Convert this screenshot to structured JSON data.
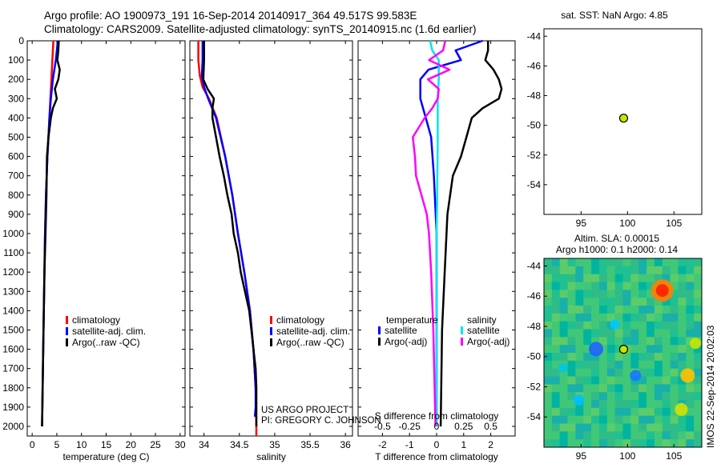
{
  "header": {
    "line1": "Argo profile: AO 1900973_191 16-Sep-2014 20140917_364 49.517S 99.583E",
    "line2": "Climatology: CARS2009. Satellite-adjusted climatology: synTS_20140915.nc (1.6d earlier)"
  },
  "credits": {
    "project": "US ARGO PROJECT",
    "pi": "PI: GREGORY C. JOHNSON",
    "imos": "IMOS 22-Sep-2014 20:02:03"
  },
  "colors": {
    "climatology": "#ff0000",
    "satellite": "#0000ff",
    "argo": "#000000",
    "sat_t": "#0000ff",
    "sat_s": "#00e5ee",
    "argo_s": "#ff00ff",
    "marker": "#c8e600"
  },
  "chart_data": [
    {
      "type": "line",
      "id": "temperature",
      "xlabel": "temperature (deg C)",
      "ylim": [
        2050,
        0
      ],
      "xlim": [
        -1,
        31
      ],
      "xticks": [
        "0",
        "5",
        "10",
        "15",
        "20",
        "25",
        "30"
      ],
      "yticks": [
        "0",
        "100",
        "200",
        "300",
        "400",
        "500",
        "600",
        "700",
        "800",
        "900",
        "1000",
        "1100",
        "1200",
        "1300",
        "1400",
        "1500",
        "1600",
        "1700",
        "1800",
        "1900",
        "2000"
      ],
      "legend": [
        "climatology",
        "satellite-adj. clim.",
        "Argo(..raw -QC)"
      ],
      "series": [
        {
          "name": "climatology",
          "depth": [
            0,
            100,
            200,
            300,
            400,
            600,
            800,
            1000,
            1500,
            2000
          ],
          "values": [
            4.3,
            4.1,
            3.9,
            3.7,
            3.5,
            3.1,
            2.8,
            2.6,
            2.3,
            2.0
          ]
        },
        {
          "name": "satellite-adj. clim.",
          "depth": [
            0,
            100,
            200,
            300,
            400,
            600,
            800,
            1000,
            1500,
            2000
          ],
          "values": [
            5.2,
            4.8,
            4.2,
            3.8,
            3.5,
            3.1,
            2.8,
            2.6,
            2.3,
            2.0
          ]
        },
        {
          "name": "Argo(..raw -QC)",
          "depth": [
            0,
            50,
            100,
            150,
            200,
            250,
            300,
            350,
            400,
            500,
            600,
            800,
            1000,
            1200,
            1500,
            2000
          ],
          "values": [
            5.4,
            5.3,
            5.1,
            5.6,
            5.3,
            4.6,
            5.0,
            4.2,
            3.8,
            3.3,
            3.0,
            2.9,
            2.7,
            2.5,
            2.3,
            2.0
          ]
        }
      ]
    },
    {
      "type": "line",
      "id": "salinity",
      "xlabel": "salinity",
      "ylim": [
        2050,
        0
      ],
      "xlim": [
        33.8,
        36.1
      ],
      "xticks": [
        "34",
        "34.5",
        "35",
        "35.5",
        "36"
      ],
      "legend": [
        "climatology",
        "satellite-adj. clim.",
        "Argo(..raw -QC)"
      ],
      "series": [
        {
          "name": "climatology",
          "depth": [
            0,
            100,
            180,
            240,
            300,
            400,
            600,
            800,
            1000,
            1200,
            1400,
            1600,
            1800,
            2000,
            2050
          ],
          "values": [
            33.92,
            33.92,
            33.94,
            33.98,
            34.07,
            34.18,
            34.3,
            34.4,
            34.48,
            34.57,
            34.65,
            34.7,
            34.73,
            34.74,
            34.74
          ]
        },
        {
          "name": "satellite-adj. clim.",
          "depth": [
            0,
            100,
            180,
            240,
            300,
            400,
            600,
            800,
            1000,
            1200,
            1400,
            1600,
            1800,
            1900,
            1950
          ],
          "values": [
            33.98,
            33.98,
            33.97,
            34.0,
            34.06,
            34.17,
            34.3,
            34.4,
            34.48,
            34.57,
            34.65,
            34.7,
            34.73,
            34.73,
            34.72
          ]
        },
        {
          "name": "Argo(..raw -QC)",
          "depth": [
            0,
            100,
            200,
            250,
            300,
            350,
            400,
            500,
            600,
            700,
            800,
            900,
            1000,
            1100,
            1200,
            1300,
            1400,
            1500,
            1600,
            1700,
            1800,
            1900,
            2000
          ],
          "values": [
            34.0,
            34.0,
            33.99,
            34.05,
            34.14,
            34.12,
            34.12,
            34.17,
            34.22,
            34.28,
            34.33,
            34.39,
            34.42,
            34.48,
            34.52,
            34.58,
            34.64,
            34.67,
            34.7,
            34.73,
            34.74,
            34.74,
            34.74
          ]
        }
      ]
    },
    {
      "type": "line",
      "id": "difference",
      "xlabel": "T difference from climatology",
      "xlabel_top": "S difference from climatology",
      "ylim": [
        2050,
        0
      ],
      "xlim": [
        -2.9,
        2.9
      ],
      "xticks": [
        "-2",
        "-1",
        "0",
        "1",
        "2"
      ],
      "xticks_top": [
        "-0.5",
        "-0.25",
        "0",
        "0.25",
        "0.5"
      ],
      "legend_headers": [
        "temperature",
        "salinity"
      ],
      "legend": [
        "satellite",
        "Argo(-adj)",
        "satellite",
        "Argo(-adj)"
      ],
      "series": [
        {
          "name": "satellite",
          "group": "temperature",
          "depth": [
            0,
            50,
            100,
            150,
            200,
            300,
            400,
            500,
            700,
            1000,
            1500,
            2000
          ],
          "values": [
            1.7,
            0.7,
            0.9,
            -0.3,
            -0.6,
            -0.6,
            -0.4,
            -0.2,
            -0.1,
            0.0,
            0.0,
            0.0
          ]
        },
        {
          "name": "Argo(-adj)",
          "group": "temperature",
          "depth": [
            0,
            50,
            100,
            150,
            200,
            250,
            300,
            350,
            400,
            500,
            600,
            700,
            900,
            1200,
            1500,
            2000
          ],
          "values": [
            1.9,
            1.9,
            1.8,
            2.1,
            2.3,
            2.4,
            2.3,
            1.7,
            1.3,
            1.1,
            0.9,
            0.6,
            0.4,
            0.3,
            0.2,
            0.15
          ]
        },
        {
          "name": "satellite",
          "group": "salinity",
          "depth": [
            0,
            50,
            100,
            200,
            300,
            500,
            800,
            1000,
            1500,
            2000
          ],
          "values": [
            -0.06,
            -0.04,
            0.02,
            0.02,
            0.01,
            0.01,
            0.005,
            0.0,
            0.0,
            0.0
          ]
        },
        {
          "name": "Argo(-adj)",
          "group": "salinity",
          "depth": [
            0,
            50,
            100,
            150,
            200,
            250,
            300,
            350,
            400,
            500,
            600,
            700,
            800,
            900,
            1000,
            1200,
            1500,
            2000
          ],
          "values": [
            0.08,
            0.06,
            -0.07,
            0.12,
            -0.08,
            0.02,
            0.01,
            -0.04,
            -0.11,
            -0.22,
            -0.2,
            -0.19,
            -0.14,
            -0.09,
            -0.07,
            -0.05,
            -0.03,
            -0.01
          ]
        }
      ]
    },
    {
      "type": "scatter",
      "id": "sst_map",
      "title": "sat. SST: NaN Argo: 4.85",
      "xlim": [
        91,
        108
      ],
      "ylim": [
        -56,
        -43.5
      ],
      "xticks": [
        "95",
        "100",
        "105"
      ],
      "yticks": [
        "-44",
        "-46",
        "-48",
        "-50",
        "-52",
        "-54"
      ],
      "points": [
        {
          "lon": 99.583,
          "lat": -49.517
        }
      ]
    },
    {
      "type": "heatmap",
      "id": "sla_map",
      "title_line1": "Altim. SLA: 0.00015",
      "title_line2": "Argo h1000: 0.1 h2000: 0.14",
      "xlim": [
        91,
        108
      ],
      "ylim": [
        -56,
        -43.5
      ],
      "xticks": [
        "95",
        "100",
        "105"
      ],
      "yticks": [
        "-44",
        "-46",
        "-48",
        "-50",
        "-52",
        "-54"
      ],
      "points": [
        {
          "lon": 99.583,
          "lat": -49.517
        }
      ]
    }
  ]
}
